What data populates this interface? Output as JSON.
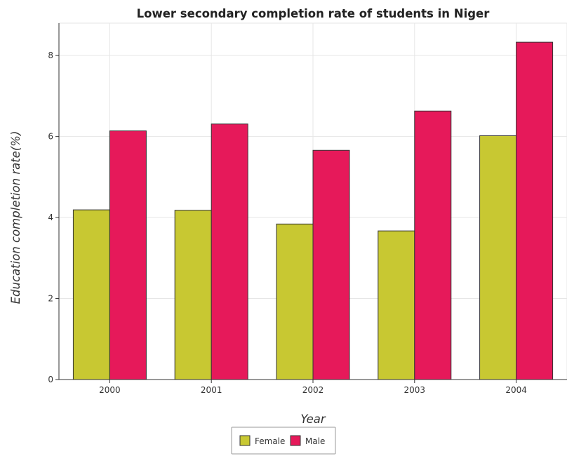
{
  "chart_data": {
    "type": "bar",
    "title": "Lower secondary completion rate of students in Niger",
    "xlabel": "Year",
    "ylabel": "Education completion rate(%)",
    "categories": [
      "2000",
      "2001",
      "2002",
      "2003",
      "2004"
    ],
    "series": [
      {
        "name": "Female",
        "color": "#c8c832",
        "values": [
          4.19,
          4.18,
          3.84,
          3.67,
          6.02
        ]
      },
      {
        "name": "Male",
        "color": "#e6195a",
        "values": [
          6.14,
          6.31,
          5.66,
          6.63,
          8.33
        ]
      }
    ],
    "ylim": [
      0,
      8.8
    ],
    "yticks": [
      0,
      2,
      4,
      6,
      8
    ],
    "grid": true,
    "legend_position": "bottom-center"
  }
}
